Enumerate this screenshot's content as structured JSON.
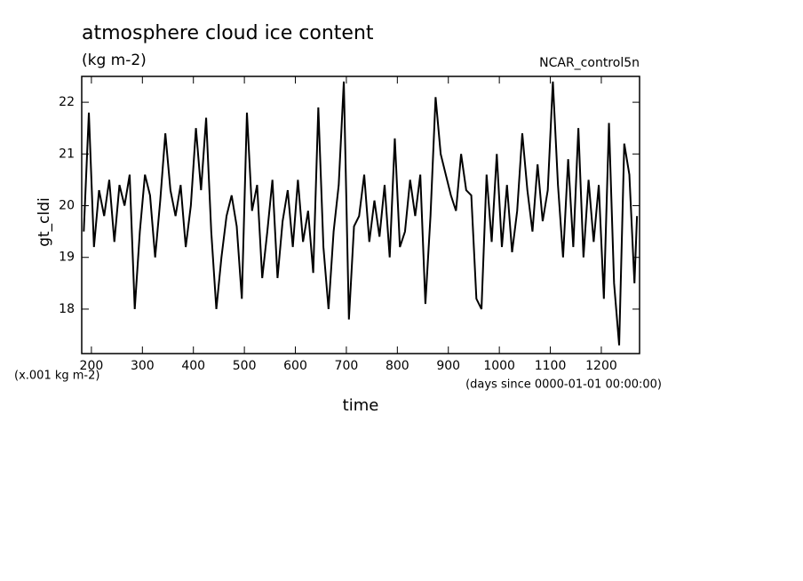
{
  "chart_data": {
    "type": "line",
    "title": "atmosphere cloud ice content",
    "subtitle": "(kg m-2)",
    "annotation": "NCAR_control5n",
    "y_label": "gt_cldi",
    "y_unit": "(x.001 kg m-2)",
    "x_unit": "(days since 0000-01-01 00:00:00)",
    "x_label": "time",
    "x": [
      185,
      195,
      205,
      215,
      225,
      235,
      245,
      255,
      265,
      275,
      285,
      295,
      305,
      315,
      325,
      335,
      345,
      355,
      365,
      375,
      385,
      395,
      405,
      415,
      425,
      435,
      445,
      455,
      465,
      475,
      485,
      495,
      505,
      515,
      525,
      535,
      545,
      555,
      565,
      575,
      585,
      595,
      605,
      615,
      625,
      635,
      645,
      655,
      665,
      675,
      685,
      695,
      705,
      715,
      725,
      735,
      745,
      755,
      765,
      775,
      785,
      795,
      805,
      815,
      825,
      835,
      845,
      855,
      865,
      875,
      885,
      895,
      905,
      915,
      925,
      935,
      945,
      955,
      965,
      975,
      985,
      995,
      1005,
      1015,
      1025,
      1035,
      1045,
      1055,
      1065,
      1075,
      1085,
      1095,
      1105,
      1115,
      1125,
      1135,
      1145,
      1155,
      1165,
      1175,
      1185,
      1195,
      1205,
      1215,
      1225,
      1235,
      1245,
      1255,
      1265,
      1270
    ],
    "series": [
      {
        "name": "gt_cldi",
        "color": "#000000",
        "values": [
          19.5,
          21.8,
          19.2,
          20.3,
          19.8,
          20.5,
          19.3,
          20.4,
          20.0,
          20.6,
          18.0,
          19.5,
          20.6,
          20.2,
          19.0,
          20.1,
          21.4,
          20.3,
          19.8,
          20.4,
          19.2,
          20.0,
          21.5,
          20.3,
          21.7,
          19.5,
          18.0,
          19.0,
          19.8,
          20.2,
          19.6,
          18.2,
          21.8,
          19.9,
          20.4,
          18.6,
          19.5,
          20.5,
          18.6,
          19.7,
          20.3,
          19.2,
          20.5,
          19.3,
          19.9,
          18.7,
          21.9,
          19.2,
          18.0,
          19.5,
          20.4,
          22.4,
          17.8,
          19.6,
          19.8,
          20.6,
          19.3,
          20.1,
          19.4,
          20.4,
          19.0,
          21.3,
          19.2,
          19.5,
          20.5,
          19.8,
          20.6,
          18.1,
          19.8,
          22.1,
          21.0,
          20.6,
          20.2,
          19.9,
          21.0,
          20.3,
          20.2,
          18.2,
          18.0,
          20.6,
          19.3,
          21.0,
          19.2,
          20.4,
          19.1,
          19.9,
          21.4,
          20.3,
          19.5,
          20.8,
          19.7,
          20.3,
          22.4,
          20.4,
          19.0,
          20.9,
          19.2,
          21.5,
          19.0,
          20.5,
          19.3,
          20.4,
          18.2,
          21.6,
          18.5,
          17.3,
          21.2,
          20.6,
          18.5,
          19.8
        ]
      }
    ],
    "xlim": [
      181,
      1275
    ],
    "ylim": [
      17.14,
      22.5
    ],
    "xticks": [
      200,
      300,
      400,
      500,
      600,
      700,
      800,
      900,
      1000,
      1100,
      1200
    ],
    "yticks": [
      18,
      19,
      20,
      21,
      22
    ]
  }
}
